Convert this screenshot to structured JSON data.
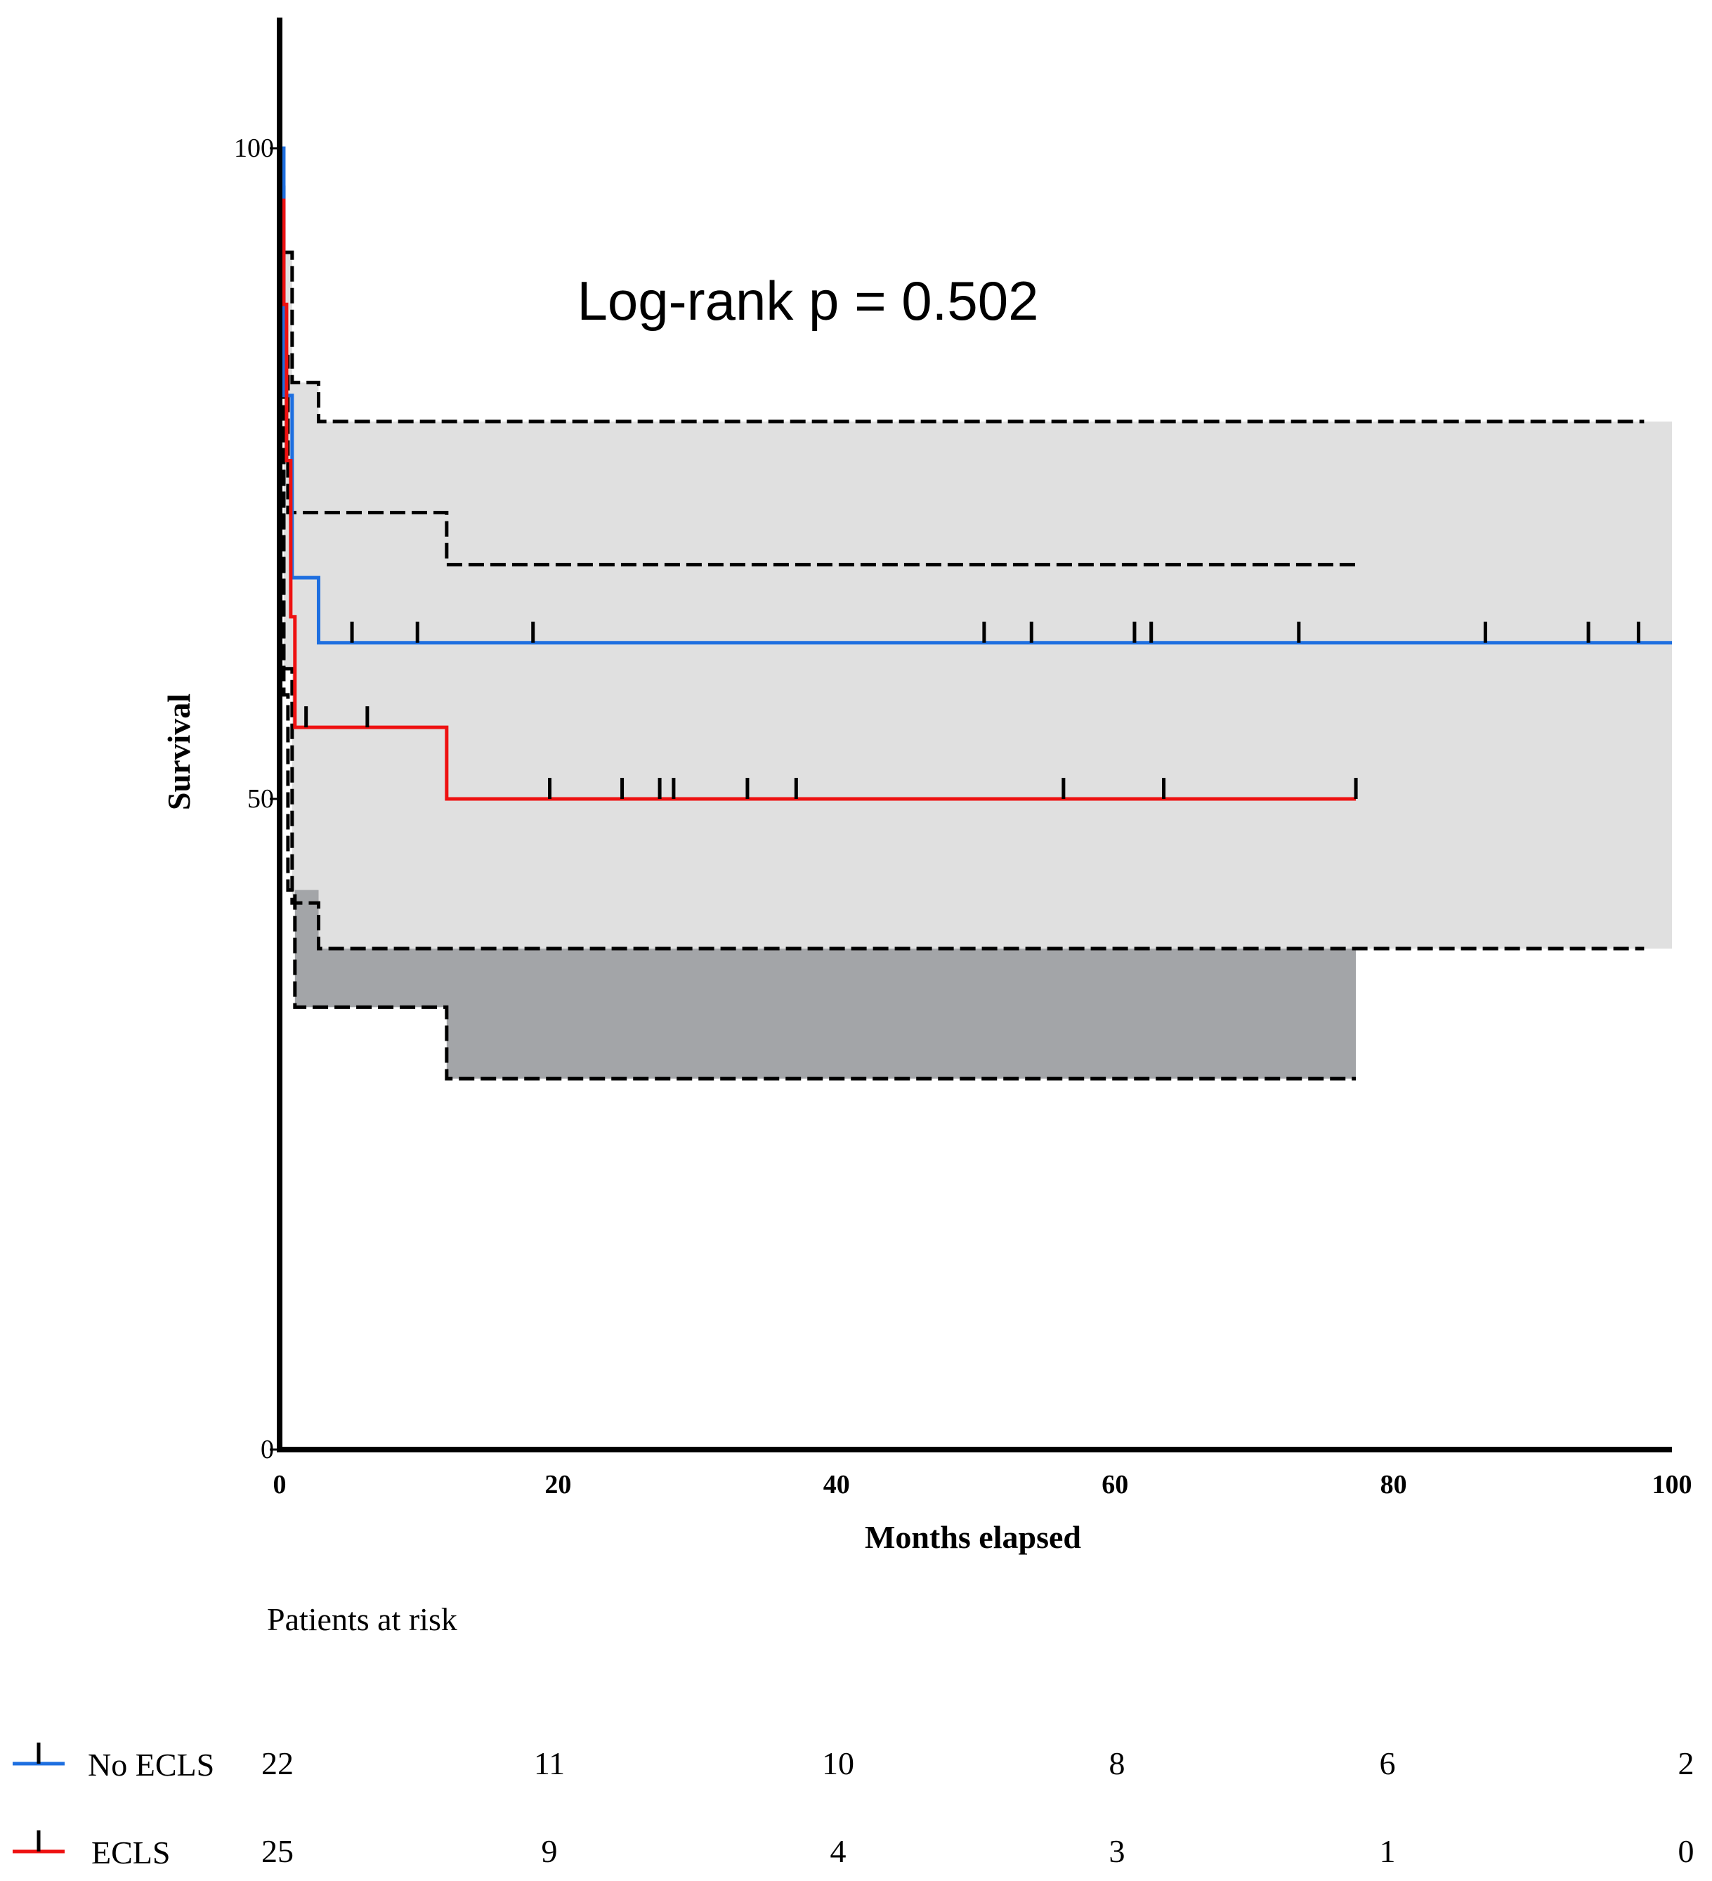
{
  "chart_data": {
    "type": "line",
    "subtype": "kaplan-meier",
    "annotation": "Log-rank p = 0.502",
    "xlabel": "Months elapsed",
    "ylabel": "Survival",
    "xlim": [
      0,
      100
    ],
    "ylim": [
      0,
      110
    ],
    "x_ticks": [
      0,
      20,
      40,
      60,
      80,
      100
    ],
    "y_ticks": [
      0,
      50,
      100
    ],
    "grid": false,
    "colors": {
      "no_ecls": "#1e6fe0",
      "ecls": "#ee1111",
      "ci_light": "#e0e0e0",
      "ci_dark": "#a3a5a8",
      "ci_line": "#000000"
    },
    "series": [
      {
        "name": "No ECLS",
        "color": "#1e6fe0",
        "steps": [
          [
            0,
            100
          ],
          [
            0.3,
            81
          ],
          [
            0.9,
            67
          ],
          [
            2.8,
            62
          ],
          [
            100,
            62
          ]
        ],
        "censored": [
          5.2,
          9.9,
          18.2,
          50.6,
          54,
          61.4,
          62.6,
          73.2,
          86.6,
          94,
          97.6
        ]
      },
      {
        "name": "ECLS",
        "color": "#ee1111",
        "steps": [
          [
            0,
            96
          ],
          [
            0.3,
            88
          ],
          [
            0.5,
            76
          ],
          [
            0.8,
            64
          ],
          [
            1.1,
            55.5
          ],
          [
            12,
            50
          ],
          [
            77.3,
            50
          ]
        ],
        "censored": [
          1.9,
          6.3,
          19.4,
          24.6,
          27.3,
          28.3,
          33.6,
          37.1,
          56.3,
          63.5,
          77.3
        ]
      }
    ],
    "confidence_bands": [
      {
        "name": "No ECLS",
        "upper": [
          [
            0,
            95
          ],
          [
            0.3,
            92
          ],
          [
            0.9,
            82
          ],
          [
            2.8,
            79
          ],
          [
            98,
            79
          ]
        ],
        "lower": [
          [
            0,
            95
          ],
          [
            0.3,
            60
          ],
          [
            0.9,
            42
          ],
          [
            2.8,
            38.5
          ],
          [
            98,
            38.5
          ]
        ]
      },
      {
        "name": "ECLS",
        "upper": [
          [
            0,
            97
          ],
          [
            0.3,
            84
          ],
          [
            0.6,
            72
          ],
          [
            12,
            68
          ],
          [
            77.3,
            68
          ]
        ],
        "lower": [
          [
            0,
            80
          ],
          [
            0.3,
            58
          ],
          [
            0.6,
            43
          ],
          [
            1.1,
            34
          ],
          [
            12,
            28.5
          ],
          [
            77.3,
            28.5
          ]
        ]
      }
    ],
    "risk_table": {
      "title": "Patients at risk",
      "times": [
        0,
        20,
        40,
        60,
        80,
        100
      ],
      "rows": [
        {
          "name": "No ECLS",
          "color": "#1e6fe0",
          "values": [
            22,
            11,
            10,
            8,
            6,
            2
          ]
        },
        {
          "name": "ECLS",
          "color": "#ee1111",
          "values": [
            25,
            9,
            4,
            3,
            1,
            0
          ]
        }
      ]
    }
  }
}
